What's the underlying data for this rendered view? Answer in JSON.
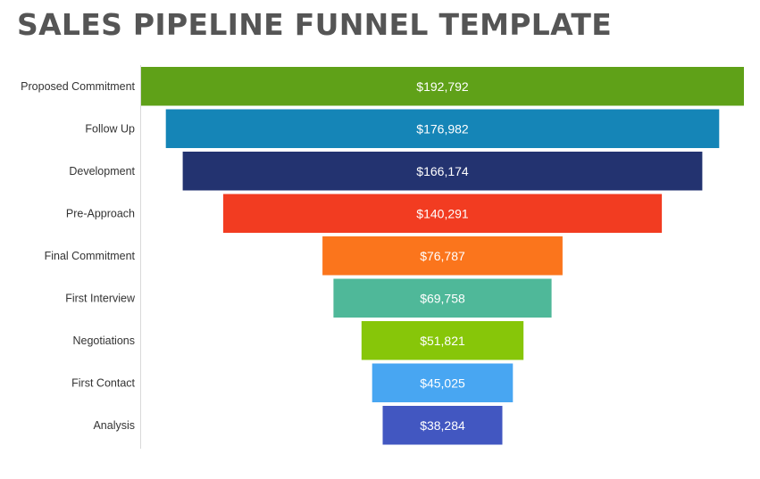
{
  "page": {
    "title": "SALES PIPELINE FUNNEL TEMPLATE"
  },
  "chart_data": {
    "type": "bar",
    "subtype": "funnel",
    "title": "SALES PIPELINE FUNNEL TEMPLATE",
    "categories": [
      "Proposed Commitment",
      "Follow Up",
      "Development",
      "Pre-Approach",
      "Final Commitment",
      "First Interview",
      "Negotiations",
      "First Contact",
      "Analysis"
    ],
    "values": [
      192792,
      176982,
      166174,
      140291,
      76787,
      69758,
      51821,
      45025,
      38284
    ],
    "value_labels": [
      "$192,792",
      "$176,982",
      "$166,174",
      "$140,291",
      "$76,787",
      "$69,758",
      "$51,821",
      "$45,025",
      "$38,284"
    ],
    "colors": [
      "#5fa118",
      "#1585b7",
      "#233370",
      "#f23c21",
      "#fb751c",
      "#4fb899",
      "#87c609",
      "#48a6f2",
      "#4257c1"
    ],
    "value_label_color": "#ffffff",
    "xlabel": "",
    "ylabel": "",
    "grid": false,
    "legend": "none"
  }
}
